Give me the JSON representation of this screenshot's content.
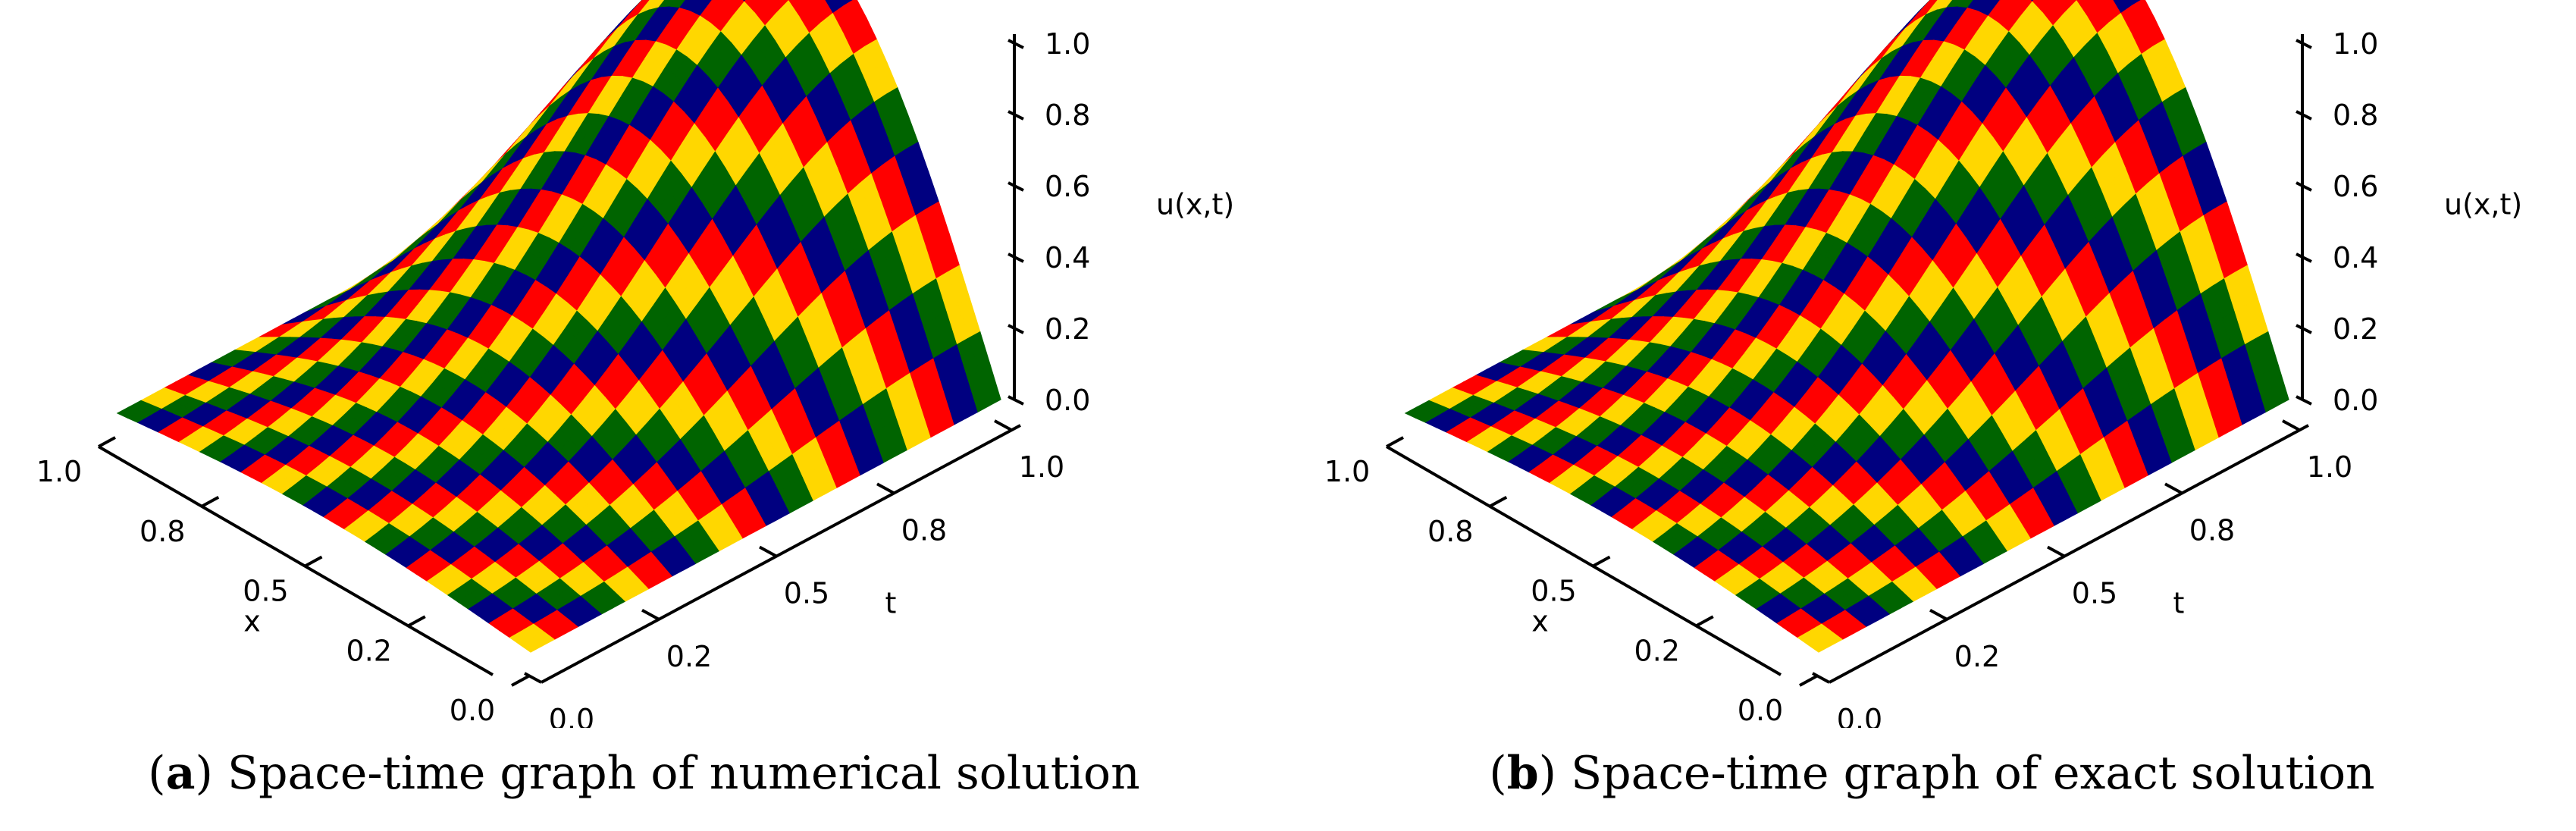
{
  "chart_data": [
    {
      "type": "surface",
      "function": "u(x,t) = sin(pi*x) * exp(-(t-1)^2 / 0.32) for x,t in [0,1]",
      "grid_resolution": 40,
      "checker_block_size": 2,
      "checker_colors": [
        "#ffd700",
        "#ff0000",
        "#000080",
        "#006400"
      ],
      "xlabel": "x",
      "ylabel": "t",
      "zlabel": "u(x,t)",
      "x_ticks": [
        "0.0",
        "0.2",
        "0.5",
        "0.8",
        "1.0"
      ],
      "t_ticks": [
        "0.0",
        "0.2",
        "0.5",
        "0.8",
        "1.0"
      ],
      "z_ticks": [
        "0.0",
        "0.2",
        "0.4",
        "0.6",
        "0.8",
        "1.0"
      ],
      "xlim": [
        0,
        1
      ],
      "tlim": [
        0,
        1
      ],
      "zlim": [
        0,
        1
      ],
      "caption": {
        "label": "a",
        "text": "Space-time graph of numerical solution"
      }
    },
    {
      "type": "surface",
      "function": "u(x,t) = sin(pi*x) * exp(-(t-1)^2 / 0.32) for x,t in [0,1]",
      "grid_resolution": 40,
      "checker_block_size": 2,
      "checker_colors": [
        "#ffd700",
        "#ff0000",
        "#000080",
        "#006400"
      ],
      "xlabel": "x",
      "ylabel": "t",
      "zlabel": "u(x,t)",
      "x_ticks": [
        "0.0",
        "0.2",
        "0.5",
        "0.8",
        "1.0"
      ],
      "t_ticks": [
        "0.0",
        "0.2",
        "0.5",
        "0.8",
        "1.0"
      ],
      "z_ticks": [
        "0.0",
        "0.2",
        "0.4",
        "0.6",
        "0.8",
        "1.0"
      ],
      "xlim": [
        0,
        1
      ],
      "tlim": [
        0,
        1
      ],
      "zlim": [
        0,
        1
      ],
      "caption": {
        "label": "b",
        "text": "Space-time graph of exact solution"
      }
    }
  ]
}
